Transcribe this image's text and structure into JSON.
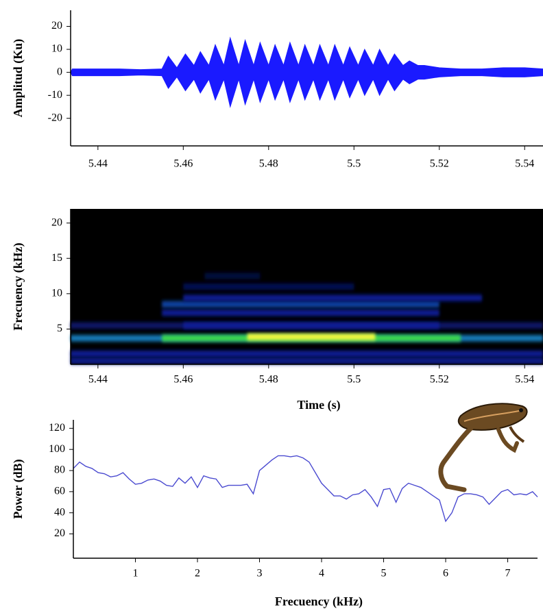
{
  "chart_data": [
    {
      "type": "area",
      "ylabel": "Amplitud (Ku)",
      "color": "#1a1aff",
      "x": [
        5.434,
        5.44,
        5.445,
        5.45,
        5.455,
        5.4565,
        5.4585,
        5.4605,
        5.4625,
        5.464,
        5.466,
        5.4675,
        5.4695,
        5.471,
        5.473,
        5.4745,
        5.4765,
        5.478,
        5.48,
        5.4815,
        5.4835,
        5.485,
        5.487,
        5.4885,
        5.4905,
        5.492,
        5.494,
        5.4955,
        5.4975,
        5.499,
        5.501,
        5.5025,
        5.5045,
        5.506,
        5.508,
        5.5095,
        5.5115,
        5.513,
        5.515,
        5.5165,
        5.52,
        5.525,
        5.53,
        5.535,
        5.54,
        5.5443
      ],
      "values": [
        1.5,
        1.5,
        1.5,
        1.2,
        1.5,
        7,
        2,
        8,
        3,
        9,
        3,
        12,
        3,
        15,
        3,
        14,
        3,
        13,
        3,
        12,
        3,
        13,
        3,
        12,
        3,
        12,
        3,
        12,
        3,
        11,
        3,
        10,
        3,
        10,
        3,
        8,
        3,
        5,
        3,
        3,
        2,
        1.5,
        1.5,
        2,
        2,
        1.5
      ],
      "xlim": [
        5.4336,
        5.5443
      ],
      "xticks": [
        5.44,
        5.46,
        5.48,
        5.5,
        5.52,
        5.54
      ],
      "ylim": [
        -32,
        27
      ],
      "yticks": [
        -20,
        -10,
        0,
        10,
        20
      ]
    },
    {
      "type": "spectrogram",
      "ylabel": "Frecuency (kHz)",
      "xlabel": "Time (s)",
      "bands": [
        {
          "frequency": 3.7,
          "start": 5.4336,
          "end": 5.5443,
          "intensity": 0.5
        },
        {
          "frequency": 3.7,
          "start": 5.455,
          "end": 5.525,
          "intensity": 0.8
        },
        {
          "frequency": 3.9,
          "start": 5.475,
          "end": 5.505,
          "intensity": 1.0
        },
        {
          "frequency": 1.5,
          "start": 5.4336,
          "end": 5.5443,
          "intensity": 0.3
        },
        {
          "frequency": 0.5,
          "start": 5.4336,
          "end": 5.5443,
          "intensity": 0.28
        },
        {
          "frequency": 5.5,
          "start": 5.4336,
          "end": 5.5443,
          "intensity": 0.2
        },
        {
          "frequency": 5.5,
          "start": 5.46,
          "end": 5.52,
          "intensity": 0.3
        },
        {
          "frequency": 7.3,
          "start": 5.455,
          "end": 5.52,
          "intensity": 0.3
        },
        {
          "frequency": 8.5,
          "start": 5.455,
          "end": 5.52,
          "intensity": 0.38
        },
        {
          "frequency": 9.4,
          "start": 5.46,
          "end": 5.53,
          "intensity": 0.3
        },
        {
          "frequency": 11,
          "start": 5.46,
          "end": 5.5,
          "intensity": 0.15
        },
        {
          "frequency": 12.5,
          "start": 5.465,
          "end": 5.478,
          "intensity": 0.1
        }
      ],
      "xlim": [
        5.4336,
        5.5443
      ],
      "xticks": [
        5.44,
        5.46,
        5.48,
        5.5,
        5.52,
        5.54
      ],
      "ylim": [
        0,
        22
      ],
      "yticks": [
        5,
        10,
        15,
        20
      ]
    },
    {
      "type": "line",
      "ylabel": "Power (dB)",
      "xlabel": "Frecuency (kHz)",
      "color": "#4a4ad0",
      "x": [
        0,
        0.1,
        0.2,
        0.3,
        0.4,
        0.5,
        0.6,
        0.7,
        0.8,
        0.9,
        1.0,
        1.1,
        1.2,
        1.3,
        1.4,
        1.5,
        1.6,
        1.7,
        1.8,
        1.9,
        2.0,
        2.1,
        2.2,
        2.3,
        2.4,
        2.5,
        2.6,
        2.7,
        2.8,
        2.9,
        3.0,
        3.1,
        3.2,
        3.3,
        3.4,
        3.5,
        3.6,
        3.7,
        3.8,
        3.9,
        4.0,
        4.1,
        4.2,
        4.3,
        4.4,
        4.5,
        4.6,
        4.7,
        4.8,
        4.9,
        5.0,
        5.1,
        5.2,
        5.3,
        5.4,
        5.5,
        5.6,
        5.7,
        5.8,
        5.9,
        6.0,
        6.1,
        6.2,
        6.3,
        6.4,
        6.5,
        6.6,
        6.7,
        6.8,
        6.9,
        7.0,
        7.1,
        7.2,
        7.3,
        7.4,
        7.48
      ],
      "values": [
        82,
        88,
        84,
        82,
        78,
        77,
        74,
        75,
        78,
        72,
        67,
        68,
        71,
        72,
        70,
        66,
        65,
        73,
        68,
        74,
        64,
        75,
        73,
        72,
        64,
        66,
        66,
        66,
        67,
        58,
        80,
        85,
        90,
        94,
        94,
        93,
        94,
        92,
        88,
        78,
        68,
        62,
        56,
        56,
        53,
        57,
        58,
        62,
        55,
        46,
        62,
        63,
        50,
        63,
        68,
        66,
        64,
        60,
        56,
        52,
        32,
        40,
        55,
        58,
        58,
        57,
        55,
        48,
        54,
        60,
        62,
        57,
        58,
        57,
        60,
        55
      ],
      "xlim": [
        0,
        7.48
      ],
      "xticks": [
        1,
        2,
        3,
        4,
        5,
        6,
        7
      ],
      "ylim": [
        -3,
        128
      ],
      "yticks": [
        20,
        40,
        60,
        80,
        100,
        120
      ]
    }
  ]
}
